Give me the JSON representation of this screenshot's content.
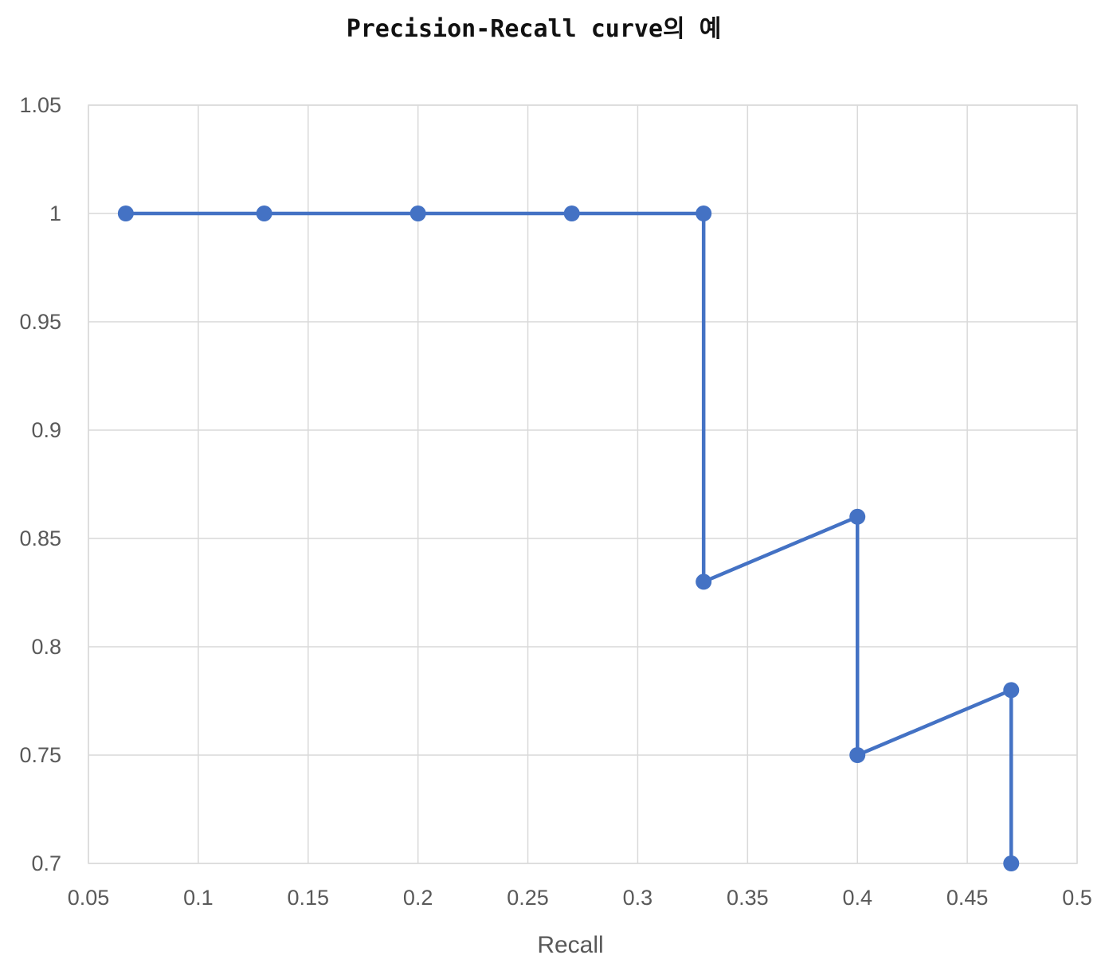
{
  "chart_data": {
    "type": "line",
    "title": "Precision-Recall curve의 예",
    "xlabel": "Recall",
    "ylabel": "",
    "xlim": [
      0.05,
      0.5
    ],
    "ylim": [
      0.7,
      1.05
    ],
    "xticks": [
      0.05,
      0.1,
      0.15,
      0.2,
      0.25,
      0.3,
      0.35,
      0.4,
      0.45,
      0.5
    ],
    "yticks": [
      0.7,
      0.75,
      0.8,
      0.85,
      0.9,
      0.95,
      1,
      1.05
    ],
    "xtick_labels": [
      "0.05",
      "0.1",
      "0.15",
      "0.2",
      "0.25",
      "0.3",
      "0.35",
      "0.4",
      "0.45",
      "0.5"
    ],
    "ytick_labels": [
      "0.7",
      "0.75",
      "0.8",
      "0.85",
      "0.9",
      "0.95",
      "1",
      "1.05"
    ],
    "grid": true,
    "legend": "none",
    "series": [
      {
        "color": "#4472c4",
        "x": [
          0.067,
          0.13,
          0.2,
          0.27,
          0.33,
          0.33,
          0.4,
          0.4,
          0.47,
          0.47
        ],
        "y": [
          1.0,
          1.0,
          1.0,
          1.0,
          1.0,
          0.83,
          0.86,
          0.75,
          0.78,
          0.7
        ]
      }
    ]
  }
}
